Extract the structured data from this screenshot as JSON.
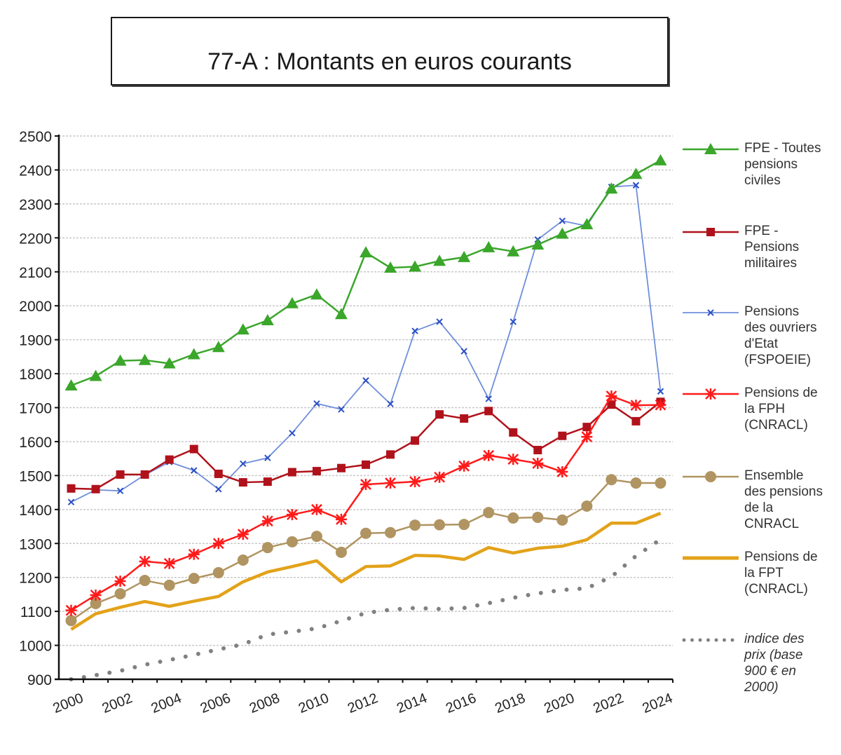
{
  "chart_data": {
    "type": "line",
    "title": "77-A : Montants en euros courants",
    "xlabel": "",
    "ylabel": "",
    "ylim": [
      900,
      2500
    ],
    "yticks": [
      900,
      1000,
      1100,
      1200,
      1300,
      1400,
      1500,
      1600,
      1700,
      1800,
      1900,
      2000,
      2100,
      2200,
      2300,
      2400,
      2500
    ],
    "ytick_labels": [
      "900",
      "1000",
      "1100",
      "1200",
      "1300",
      "1400",
      "1500",
      "1600",
      "1700",
      "1800",
      "1900",
      "2000",
      "2100",
      "2200",
      "2300",
      "2400",
      "2500"
    ],
    "x": [
      2000,
      2001,
      2002,
      2003,
      2004,
      2005,
      2006,
      2007,
      2008,
      2009,
      2010,
      2011,
      2012,
      2013,
      2014,
      2015,
      2016,
      2017,
      2018,
      2019,
      2020,
      2021,
      2022,
      2023,
      2024
    ],
    "xtick_labels": [
      "2000",
      "2002",
      "2004",
      "2006",
      "2008",
      "2010",
      "2012",
      "2014",
      "2016",
      "2018",
      "2020",
      "2022",
      "2024"
    ],
    "grid": "horizontal dashed",
    "legend_position": "right",
    "series": [
      {
        "name": "FPE - Toutes pensions civiles",
        "legend_label": "FPE - Toutes\npensions\nciviles",
        "color": "#3aa62a",
        "marker": "triangle",
        "values": [
          1765,
          1793,
          1838,
          1840,
          1830,
          1857,
          1878,
          1930,
          1957,
          2007,
          2033,
          1975,
          2157,
          2112,
          2115,
          2132,
          2143,
          2172,
          2160,
          2180,
          2212,
          2240,
          2345,
          2388,
          2428
        ]
      },
      {
        "name": "FPE - Pensions militaires",
        "legend_label": "FPE -\nPensions\nmilitaires",
        "color": "#b0121b",
        "marker": "square",
        "values": [
          1462,
          1460,
          1503,
          1503,
          1547,
          1578,
          1505,
          1480,
          1482,
          1510,
          1513,
          1522,
          1532,
          1562,
          1603,
          1680,
          1668,
          1690,
          1627,
          1575,
          1617,
          1643,
          1709,
          1660,
          1717
        ]
      },
      {
        "name": "Pensions des ouvriers d'Etat (FSPOEIE)",
        "legend_label": "Pensions\ndes ouvriers\nd'Etat\n(FSPOEIE)",
        "color": "#6f8fdb",
        "marker": "x",
        "values": [
          1422,
          1458,
          1455,
          1502,
          1540,
          1515,
          1460,
          1535,
          1552,
          1625,
          1712,
          1695,
          1780,
          1711,
          1926,
          1953,
          1866,
          1726,
          1953,
          2195,
          2250,
          2235,
          2350,
          2355,
          1748
        ]
      },
      {
        "name": "Pensions de la FPH (CNRACL)",
        "legend_label": "Pensions de\nla FPH\n(CNRACL)",
        "color": "#ff1a1a",
        "marker": "star",
        "values": [
          1103,
          1148,
          1189,
          1247,
          1241,
          1268,
          1300,
          1327,
          1366,
          1385,
          1400,
          1371,
          1474,
          1478,
          1482,
          1495,
          1528,
          1559,
          1548,
          1536,
          1511,
          1614,
          1734,
          1707,
          1708
        ]
      },
      {
        "name": "Ensemble des pensions de la CNRACL",
        "legend_label": "Ensemble\ndes pensions\nde la\nCNRACL",
        "color": "#b09461",
        "marker": "circle",
        "values": [
          1073,
          1123,
          1152,
          1191,
          1177,
          1197,
          1214,
          1251,
          1288,
          1305,
          1321,
          1274,
          1330,
          1332,
          1354,
          1355,
          1356,
          1391,
          1375,
          1377,
          1369,
          1410,
          1488,
          1478,
          1478
        ]
      },
      {
        "name": "Pensions de la FPT (CNRACL)",
        "legend_label": "Pensions de\nla FPT\n(CNRACL)",
        "color": "#e3a21a",
        "marker": "none",
        "values": [
          1047,
          1093,
          1112,
          1129,
          1115,
          1130,
          1144,
          1187,
          1216,
          1232,
          1249,
          1187,
          1232,
          1234,
          1265,
          1263,
          1253,
          1288,
          1272,
          1286,
          1292,
          1311,
          1360,
          1360,
          1389
        ]
      },
      {
        "name": "indice des prix (base 900 € en 2000)",
        "legend_label": "indice des\nprix (base\n900 € en\n2000)",
        "color": "#808080",
        "marker": "dotted",
        "values": [
          900,
          912,
          925,
          943,
          957,
          972,
          988,
          1003,
          1032,
          1040,
          1050,
          1072,
          1095,
          1105,
          1110,
          1107,
          1110,
          1124,
          1140,
          1153,
          1163,
          1168,
          1202,
          1263,
          1312
        ]
      }
    ]
  }
}
